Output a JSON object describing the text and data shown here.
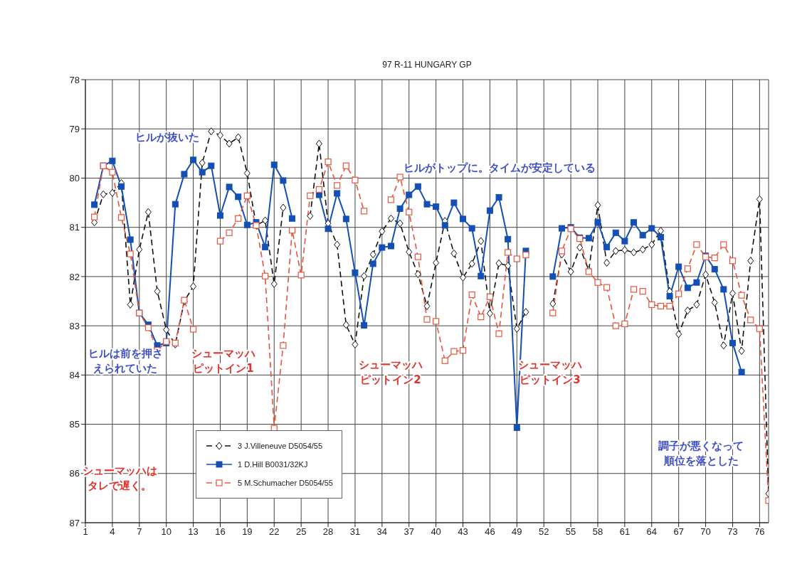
{
  "chart_data": {
    "type": "line",
    "title": "97 R-11 HUNGARY GP",
    "x": [
      2,
      3,
      4,
      5,
      6,
      7,
      8,
      9,
      10,
      11,
      12,
      13,
      14,
      15,
      16,
      17,
      18,
      19,
      20,
      21,
      22,
      23,
      24,
      25,
      26,
      27,
      28,
      29,
      30,
      31,
      32,
      33,
      34,
      35,
      36,
      37,
      38,
      39,
      40,
      41,
      42,
      43,
      44,
      45,
      46,
      47,
      48,
      49,
      50,
      51,
      52,
      53,
      54,
      55,
      56,
      57,
      58,
      59,
      60,
      61,
      62,
      63,
      64,
      65,
      66,
      67,
      68,
      69,
      70,
      71,
      72,
      73,
      74,
      75,
      76,
      77
    ],
    "series": [
      {
        "name": "3 J.Villeneuve D5054/55",
        "color": "#111111",
        "marker": "diamond",
        "line_style": "dashed",
        "values": [
          80.9,
          80.33,
          80.3,
          80.1,
          82.57,
          81.45,
          80.69,
          82.3,
          83.08,
          83.38,
          82.5,
          82.2,
          79.69,
          79.05,
          79.13,
          79.3,
          79.17,
          79.9,
          80.96,
          80.86,
          82.15,
          80.6,
          null,
          null,
          80.77,
          79.3,
          80.92,
          81.35,
          82.98,
          83.38,
          81.99,
          81.55,
          81.08,
          80.82,
          80.92,
          81.5,
          81.95,
          82.6,
          81.72,
          80.87,
          81.53,
          82.02,
          81.74,
          81.28,
          82.75,
          81.73,
          81.78,
          83.06,
          82.72,
          null,
          null,
          82.55,
          81.55,
          81.9,
          81.41,
          81.87,
          80.55,
          81.72,
          81.48,
          81.46,
          81.51,
          81.45,
          81.35,
          81.07,
          82.3,
          83.17,
          82.69,
          82.57,
          81.96,
          82.53,
          83.4,
          82.34,
          83.51,
          81.68,
          80.43,
          86.41
        ]
      },
      {
        "name": "1 D.Hill B0031/32KJ",
        "color": "#1450b4",
        "marker": "square",
        "line_style": "solid",
        "values": [
          80.54,
          79.75,
          79.65,
          80.17,
          81.25,
          82.74,
          82.98,
          83.4,
          83.35,
          80.53,
          79.92,
          79.63,
          79.88,
          79.75,
          80.76,
          80.18,
          80.38,
          80.95,
          80.9,
          81.4,
          79.73,
          80.05,
          80.82,
          null,
          null,
          80.34,
          81.03,
          80.31,
          80.83,
          81.92,
          82.99,
          81.74,
          81.41,
          81.38,
          80.62,
          80.34,
          80.17,
          80.53,
          80.58,
          80.96,
          80.5,
          80.83,
          81.02,
          81.99,
          80.66,
          80.39,
          81.24,
          85.07,
          81.48,
          null,
          null,
          82.0,
          81.02,
          81.0,
          81.21,
          81.22,
          80.9,
          81.4,
          81.11,
          81.28,
          80.9,
          81.16,
          81.02,
          81.2,
          82.4,
          81.8,
          82.23,
          82.12,
          81.58,
          81.85,
          82.26,
          83.35,
          83.94,
          null,
          null,
          null
        ]
      },
      {
        "name": "5 M.Schumacher D5054/55",
        "color": "#e8553c",
        "marker": "square-open",
        "line_style": "dashed",
        "values": [
          80.79,
          79.75,
          79.88,
          80.8,
          81.54,
          82.74,
          83.04,
          83.5,
          83.32,
          83.35,
          82.48,
          83.07,
          null,
          null,
          81.28,
          81.11,
          80.82,
          80.36,
          80.96,
          81.99,
          85.08,
          83.4,
          81.06,
          81.97,
          80.36,
          80.23,
          79.67,
          80.15,
          79.75,
          80.04,
          80.67,
          null,
          null,
          80.44,
          79.98,
          80.69,
          81.6,
          82.87,
          82.91,
          83.71,
          83.52,
          83.5,
          82.37,
          82.82,
          82.41,
          83.16,
          81.51,
          81.64,
          81.56,
          null,
          null,
          82.74,
          81.48,
          81.03,
          81.23,
          81.9,
          82.12,
          82.22,
          83.0,
          82.96,
          82.26,
          82.3,
          82.57,
          82.6,
          82.6,
          82.35,
          81.84,
          81.35,
          81.6,
          81.62,
          81.35,
          81.68,
          82.38,
          82.88,
          83.06,
          86.55
        ]
      }
    ],
    "xlim": [
      1,
      77
    ],
    "xticks": [
      1,
      4,
      7,
      10,
      13,
      16,
      19,
      22,
      25,
      28,
      31,
      34,
      37,
      40,
      43,
      46,
      49,
      52,
      55,
      58,
      61,
      64,
      67,
      70,
      73,
      76
    ],
    "ylim": [
      87,
      78
    ],
    "yticks": [
      78,
      79,
      80,
      81,
      82,
      83,
      84,
      85,
      86,
      87
    ],
    "grid": true,
    "legend": "bottom left",
    "annotations": [
      "ヒルが抜いた",
      "ヒルは前を押さえられていた",
      "ヒルがトップに。タイムが安定している",
      "調子が悪くなって順位を落とした",
      "シューマッハピットイン1",
      "シューマッハピットイン2",
      "シューマッハピットイン3",
      "シューマッハはタレで遅く。"
    ]
  }
}
